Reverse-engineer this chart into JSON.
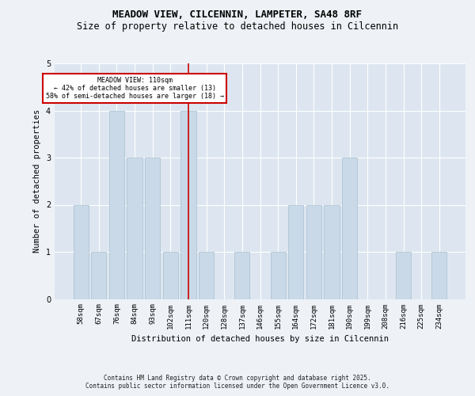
{
  "title": "MEADOW VIEW, CILCENNIN, LAMPETER, SA48 8RF",
  "subtitle": "Size of property relative to detached houses in Cilcennin",
  "xlabel": "Distribution of detached houses by size in Cilcennin",
  "ylabel": "Number of detached properties",
  "categories": [
    "58sqm",
    "67sqm",
    "76sqm",
    "84sqm",
    "93sqm",
    "102sqm",
    "111sqm",
    "120sqm",
    "128sqm",
    "137sqm",
    "146sqm",
    "155sqm",
    "164sqm",
    "172sqm",
    "181sqm",
    "190sqm",
    "199sqm",
    "208sqm",
    "216sqm",
    "225sqm",
    "234sqm"
  ],
  "values": [
    2,
    1,
    4,
    3,
    3,
    1,
    4,
    1,
    0,
    1,
    0,
    1,
    2,
    2,
    2,
    3,
    0,
    0,
    1,
    0,
    1
  ],
  "bar_color": "#c9d9e8",
  "bar_edge_color": "#a8bfcf",
  "highlight_index": 6,
  "highlight_line_color": "#cc0000",
  "ylim": [
    0,
    5
  ],
  "yticks": [
    0,
    1,
    2,
    3,
    4,
    5
  ],
  "annotation_title": "MEADOW VIEW: 110sqm",
  "annotation_line1": "← 42% of detached houses are smaller (13)",
  "annotation_line2": "58% of semi-detached houses are larger (18) →",
  "annotation_box_color": "#ffffff",
  "annotation_box_edge": "#cc0000",
  "footer1": "Contains HM Land Registry data © Crown copyright and database right 2025.",
  "footer2": "Contains public sector information licensed under the Open Government Licence v3.0.",
  "background_color": "#eef2f7",
  "plot_bg_color": "#dde6f0",
  "grid_color": "#ffffff",
  "title_fontsize": 9,
  "subtitle_fontsize": 8.5,
  "tick_fontsize": 6.5,
  "ylabel_fontsize": 7.5,
  "xlabel_fontsize": 7.5,
  "footer_fontsize": 5.5
}
